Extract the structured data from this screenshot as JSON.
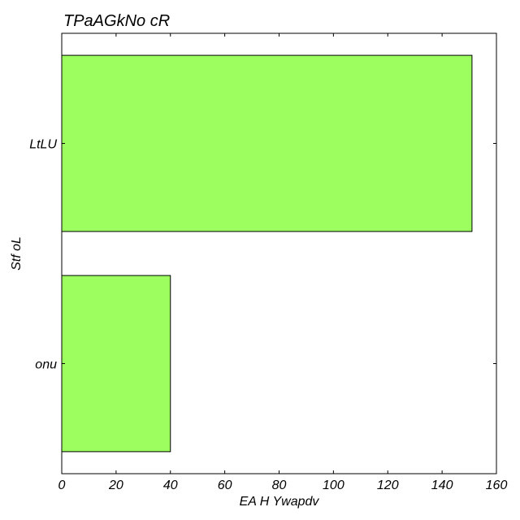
{
  "chart_data": {
    "type": "bar",
    "orientation": "horizontal",
    "title": "TPaAGkNo  cR",
    "xlabel": "EA H Ywapdv",
    "ylabel": "Stf oL",
    "categories": [
      "onu",
      "LtLU"
    ],
    "values": [
      40,
      151
    ],
    "xlim": [
      0,
      160
    ],
    "xticks": [
      "0",
      "20",
      "40",
      "60",
      "80",
      "100",
      "120",
      "140",
      "160"
    ],
    "bar_color": "#9cff5f",
    "grid": false,
    "legend": "none"
  }
}
